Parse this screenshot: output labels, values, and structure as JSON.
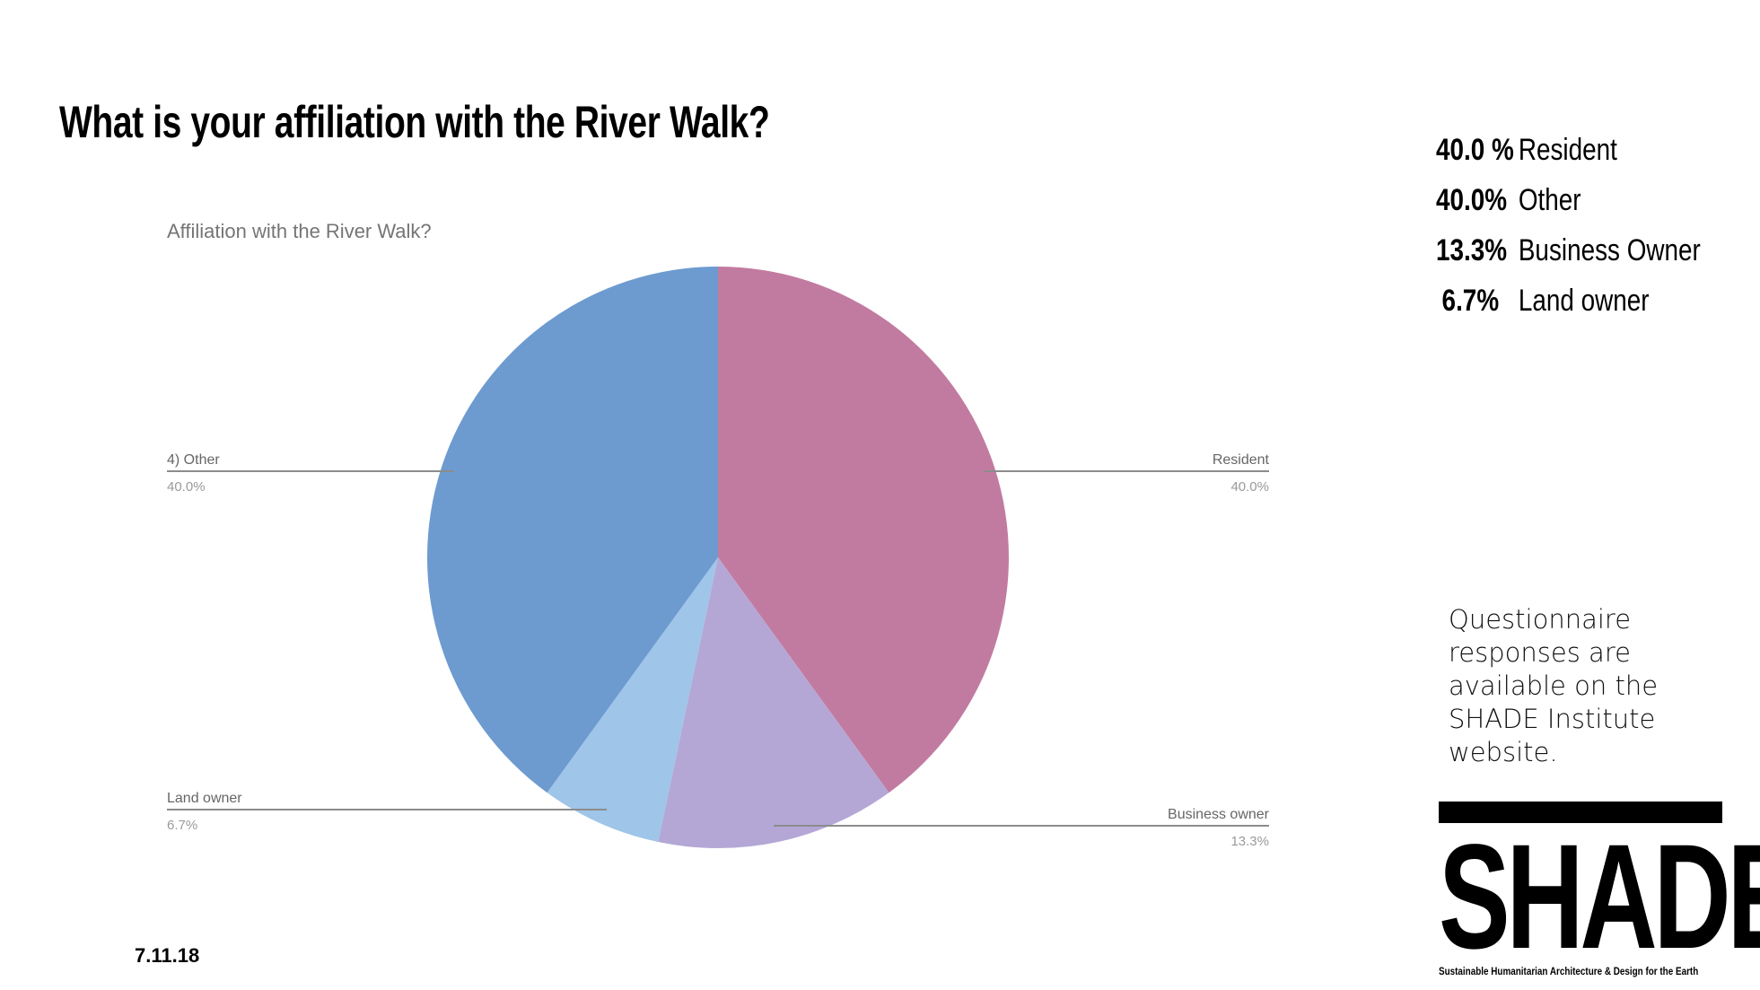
{
  "slide": {
    "title": "What is your affiliation with the River Walk?",
    "date": "7.11.18",
    "note": "Questionnaire responses are available on the SHADE Institute website."
  },
  "legend": [
    {
      "pct": "40.0 %",
      "label": "Resident"
    },
    {
      "pct": "40.0%",
      "label": "Other"
    },
    {
      "pct": "13.3%",
      "label": "Business Owner"
    },
    {
      "pct": "6.7%",
      "label": "Land owner"
    }
  ],
  "logo": {
    "text": "SHADE",
    "tagline": "Sustainable Humanitarian Architecture & Design for the Earth"
  },
  "chart_data": {
    "type": "pie",
    "title": "Affiliation with the River Walk?",
    "slices": [
      {
        "label": "Resident",
        "value": 40.0,
        "value_label": "40.0%",
        "color": "#c27ba0"
      },
      {
        "label": "Business owner",
        "value": 13.3,
        "value_label": "13.3%",
        "color": "#b4a7d6"
      },
      {
        "label": "Land owner",
        "value": 6.7,
        "value_label": "6.7%",
        "color": "#9fc5e8"
      },
      {
        "label": "4) Other",
        "value": 40.0,
        "value_label": "40.0%",
        "color": "#6d9bd0"
      }
    ],
    "start_angle": "12 o'clock",
    "direction": "clockwise",
    "legend": "none",
    "label_color": "#666666"
  }
}
